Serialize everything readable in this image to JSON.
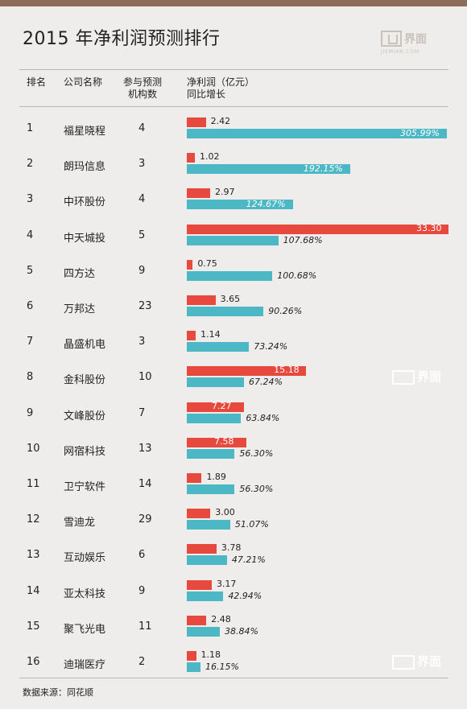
{
  "title": "2015 年净利润预测排行",
  "logo": {
    "text": "界面",
    "sub": "JIEMIAN.COM",
    "icon": "jiemian-logo-icon"
  },
  "headers": {
    "rank": "排名",
    "company": "公司名称",
    "count_line1": "参与预测",
    "count_line2": "机构数",
    "profit_line1": "净利润（亿元）",
    "profit_line2": "同比增长"
  },
  "source": "数据来源：同花顺",
  "watermark": "界面",
  "colors": {
    "profit": "#e8493e",
    "growth": "#4db8c5",
    "top_bar": "#8e6d58"
  },
  "chart_data": {
    "type": "bar",
    "title": "2015 年净利润预测排行",
    "series": [
      {
        "name": "净利润（亿元）",
        "values": [
          2.42,
          1.02,
          2.97,
          33.3,
          0.75,
          3.65,
          1.14,
          15.18,
          7.27,
          7.58,
          1.89,
          3.0,
          3.78,
          3.17,
          2.48,
          1.18
        ]
      },
      {
        "name": "同比增长",
        "values": [
          305.99,
          192.15,
          124.67,
          107.68,
          100.68,
          90.26,
          73.24,
          67.24,
          63.84,
          56.3,
          56.3,
          51.07,
          47.21,
          42.94,
          38.84,
          16.15
        ]
      }
    ],
    "rows": [
      {
        "rank": "1",
        "company": "福星晓程",
        "count": "4",
        "profit": "2.42",
        "growth": "305.99%"
      },
      {
        "rank": "2",
        "company": "朗玛信息",
        "count": "3",
        "profit": "1.02",
        "growth": "192.15%"
      },
      {
        "rank": "3",
        "company": "中环股份",
        "count": "4",
        "profit": "2.97",
        "growth": "124.67%"
      },
      {
        "rank": "4",
        "company": "中天城投",
        "count": "5",
        "profit": "33.30",
        "growth": "107.68%"
      },
      {
        "rank": "5",
        "company": "四方达",
        "count": "9",
        "profit": "0.75",
        "growth": "100.68%"
      },
      {
        "rank": "6",
        "company": "万邦达",
        "count": "23",
        "profit": "3.65",
        "growth": "90.26%"
      },
      {
        "rank": "7",
        "company": "晶盛机电",
        "count": "3",
        "profit": "1.14",
        "growth": "73.24%"
      },
      {
        "rank": "8",
        "company": "金科股份",
        "count": "10",
        "profit": "15.18",
        "growth": "67.24%"
      },
      {
        "rank": "9",
        "company": "文峰股份",
        "count": "7",
        "profit": "7.27",
        "growth": "63.84%"
      },
      {
        "rank": "10",
        "company": "网宿科技",
        "count": "13",
        "profit": "7.58",
        "growth": "56.30%"
      },
      {
        "rank": "11",
        "company": "卫宁软件",
        "count": "14",
        "profit": "1.89",
        "growth": "56.30%"
      },
      {
        "rank": "12",
        "company": "雪迪龙",
        "count": "29",
        "profit": "3.00",
        "growth": "51.07%"
      },
      {
        "rank": "13",
        "company": "互动娱乐",
        "count": "6",
        "profit": "3.78",
        "growth": "47.21%"
      },
      {
        "rank": "14",
        "company": "亚太科技",
        "count": "9",
        "profit": "3.17",
        "growth": "42.94%"
      },
      {
        "rank": "15",
        "company": "聚飞光电",
        "count": "11",
        "profit": "2.48",
        "growth": "38.84%"
      },
      {
        "rank": "16",
        "company": "迪瑞医疗",
        "count": "2",
        "profit": "1.18",
        "growth": "16.15%"
      }
    ]
  }
}
